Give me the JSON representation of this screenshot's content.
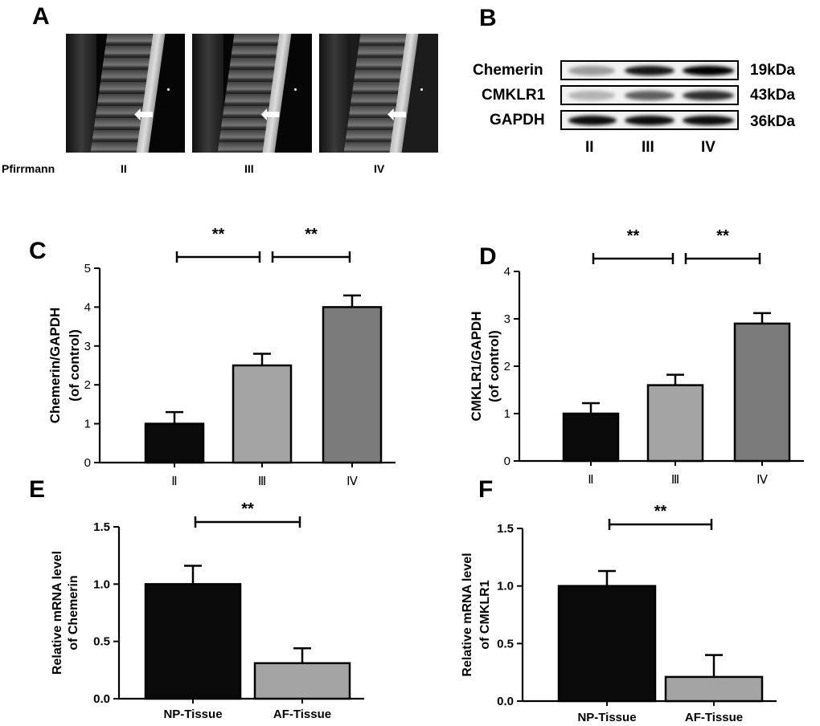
{
  "panels": {
    "a": "A",
    "b": "B",
    "c": "C",
    "d": "D",
    "e": "E",
    "f": "F"
  },
  "panel_a": {
    "row_label": "Pfirrmann",
    "grades": [
      "II",
      "III",
      "IV"
    ],
    "arrow_icon": "left-arrow-icon"
  },
  "panel_b": {
    "rows": [
      {
        "protein": "Chemerin",
        "size": "19kDa",
        "intensity": [
          0.35,
          0.85,
          0.95
        ]
      },
      {
        "protein": "CMKLR1",
        "size": "43kDa",
        "intensity": [
          0.25,
          0.55,
          0.75
        ]
      },
      {
        "protein": "GAPDH",
        "size": "36kDa",
        "intensity": [
          0.9,
          0.9,
          0.9
        ]
      }
    ],
    "grades": [
      "II",
      "III",
      "IV"
    ]
  },
  "chart_data": [
    {
      "id": "C",
      "type": "bar",
      "categories": [
        "Ⅱ",
        "Ⅲ",
        "Ⅳ"
      ],
      "values": [
        1.0,
        2.5,
        4.0
      ],
      "errors": [
        0.3,
        0.3,
        0.3
      ],
      "colors": [
        "#0a0a0a",
        "#a4a4a4",
        "#7b7b7b"
      ],
      "ylabel_line1": "Chemerin/GAPDH",
      "ylabel_line2": "(of control)",
      "ylim": [
        0,
        5
      ],
      "yticks": [
        0,
        1,
        2,
        3,
        4,
        5
      ],
      "significance": [
        {
          "from": 0,
          "to": 1,
          "label": "**"
        },
        {
          "from": 1,
          "to": 2,
          "label": "**"
        }
      ]
    },
    {
      "id": "D",
      "type": "bar",
      "categories": [
        "Ⅱ",
        "Ⅲ",
        "Ⅳ"
      ],
      "values": [
        1.0,
        1.6,
        2.9
      ],
      "errors": [
        0.22,
        0.22,
        0.22
      ],
      "colors": [
        "#0a0a0a",
        "#a4a4a4",
        "#7b7b7b"
      ],
      "ylabel_line1": "CMKLR1/GAPDH",
      "ylabel_line2": "(of control)",
      "ylim": [
        0,
        4
      ],
      "yticks": [
        0,
        1,
        2,
        3,
        4
      ],
      "significance": [
        {
          "from": 0,
          "to": 1,
          "label": "**"
        },
        {
          "from": 1,
          "to": 2,
          "label": "**"
        }
      ]
    },
    {
      "id": "E",
      "type": "bar",
      "categories": [
        "NP-Tissue",
        "AF-Tissue"
      ],
      "values": [
        1.0,
        0.31
      ],
      "errors": [
        0.16,
        0.13
      ],
      "colors": [
        "#0a0a0a",
        "#a4a4a4"
      ],
      "ylabel_line1": "Relative mRNA level",
      "ylabel_line2": "of Chemerin",
      "ylim": [
        0,
        1.5
      ],
      "yticks": [
        "0.0",
        "0.5",
        "1.0",
        "1.5"
      ],
      "significance": [
        {
          "from": 0,
          "to": 1,
          "label": "**"
        }
      ]
    },
    {
      "id": "F",
      "type": "bar",
      "categories": [
        "NP-Tissue",
        "AF-Tissue"
      ],
      "values": [
        1.0,
        0.21
      ],
      "errors": [
        0.13,
        0.19
      ],
      "colors": [
        "#0a0a0a",
        "#a4a4a4"
      ],
      "ylabel_line1": "Relative mRNA level",
      "ylabel_line2": "of CMKLR1",
      "ylim": [
        0,
        1.5
      ],
      "yticks": [
        "0.0",
        "0.5",
        "1.0",
        "1.5"
      ],
      "significance": [
        {
          "from": 0,
          "to": 1,
          "label": "**"
        }
      ]
    }
  ]
}
